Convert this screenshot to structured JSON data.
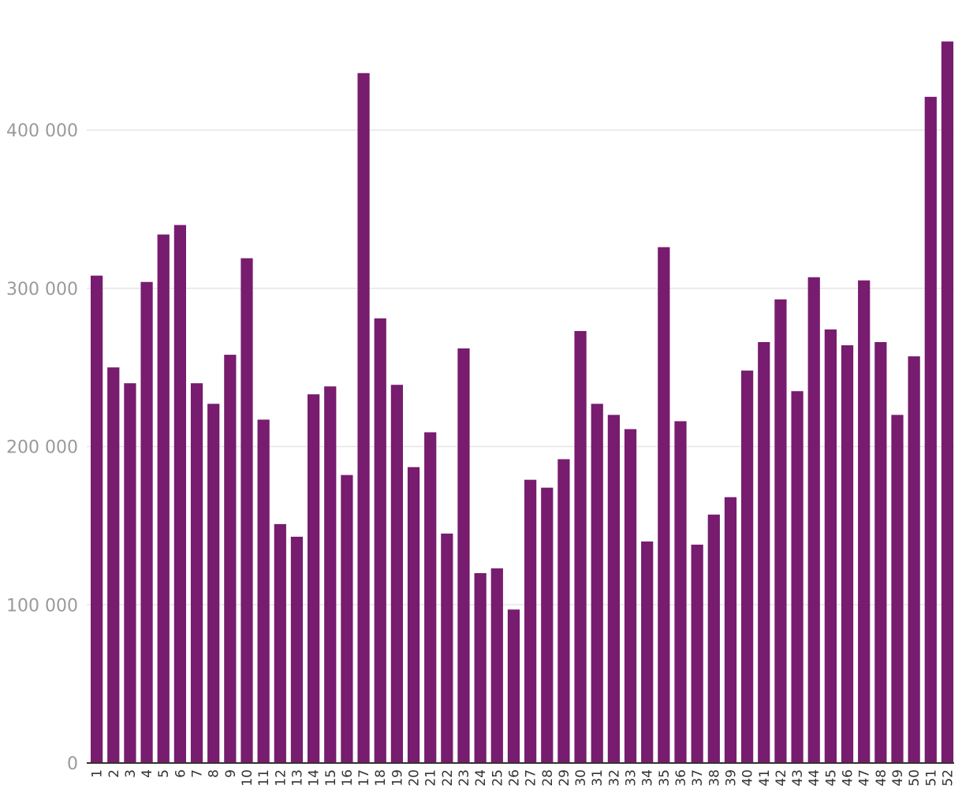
{
  "chart_data": {
    "type": "bar",
    "title": "",
    "xlabel": "",
    "ylabel": "",
    "ylim": [
      0,
      455000
    ],
    "y_ticks": [
      {
        "value": 0,
        "label": "0"
      },
      {
        "value": 100000,
        "label": "100 000"
      },
      {
        "value": 200000,
        "label": "200 000"
      },
      {
        "value": 300000,
        "label": "300 000"
      },
      {
        "value": 400000,
        "label": "400 000"
      }
    ],
    "categories": [
      "1",
      "2",
      "3",
      "4",
      "5",
      "6",
      "7",
      "8",
      "9",
      "10",
      "11",
      "12",
      "13",
      "14",
      "15",
      "16",
      "17",
      "18",
      "19",
      "20",
      "21",
      "22",
      "23",
      "24",
      "25",
      "26",
      "27",
      "28",
      "29",
      "30",
      "31",
      "32",
      "33",
      "34",
      "35",
      "36",
      "37",
      "38",
      "39",
      "40",
      "41",
      "42",
      "43",
      "44",
      "45",
      "46",
      "47",
      "48",
      "49",
      "50",
      "51",
      "52"
    ],
    "values": [
      308000,
      250000,
      240000,
      304000,
      334000,
      340000,
      240000,
      227000,
      258000,
      319000,
      217000,
      151000,
      143000,
      233000,
      238000,
      182000,
      436000,
      281000,
      239000,
      187000,
      209000,
      145000,
      262000,
      120000,
      123000,
      97000,
      179000,
      174000,
      192000,
      273000,
      227000,
      220000,
      211000,
      140000,
      326000,
      216000,
      138000,
      157000,
      168000,
      248000,
      266000,
      293000,
      235000,
      307000,
      274000,
      264000,
      305000,
      266000,
      220000,
      257000,
      421000,
      456000
    ],
    "bar_color": "#771c6e",
    "grid": true,
    "legend": "none"
  }
}
